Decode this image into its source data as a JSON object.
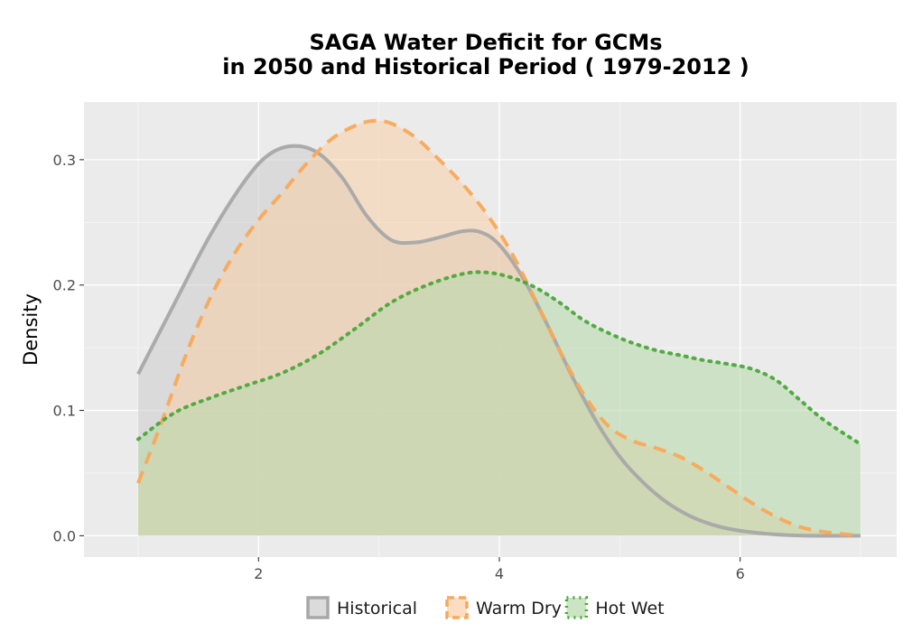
{
  "chart_data": {
    "type": "area",
    "title": "SAGA  Water Deficit for GCMs",
    "subtitle": "in 2050 and Historical Period ( 1979-2012 )",
    "xlabel": "",
    "ylabel": "Density",
    "xlim": [
      0.55,
      7.3
    ],
    "ylim": [
      -0.017,
      0.346
    ],
    "x_ticks": [
      2,
      4,
      6
    ],
    "y_ticks": [
      0.0,
      0.1,
      0.2,
      0.3
    ],
    "y_tick_labels": [
      "0.0",
      "0.1",
      "0.2",
      "0.3"
    ],
    "grid": true,
    "panel_background": "#ebebeb",
    "legend_position": "bottom",
    "series": [
      {
        "name": "Historical",
        "line_color": "#a8a8a8",
        "fill_color": "#cccccc",
        "linetype": "solid",
        "x": [
          1.0,
          1.3,
          1.6,
          1.9,
          2.1,
          2.3,
          2.5,
          2.7,
          2.9,
          3.1,
          3.3,
          3.5,
          3.7,
          3.85,
          4.0,
          4.2,
          4.4,
          4.6,
          4.8,
          5.0,
          5.2,
          5.4,
          5.6,
          5.8,
          6.0,
          6.3,
          6.6,
          7.0
        ],
        "y": [
          0.129,
          0.185,
          0.24,
          0.285,
          0.305,
          0.311,
          0.305,
          0.285,
          0.255,
          0.236,
          0.234,
          0.238,
          0.243,
          0.242,
          0.232,
          0.205,
          0.168,
          0.128,
          0.092,
          0.063,
          0.042,
          0.026,
          0.015,
          0.008,
          0.004,
          0.001,
          0.0,
          0.0
        ]
      },
      {
        "name": "Warm Dry",
        "line_color": "#f8a95a",
        "fill_color": "#f9cfa8",
        "linetype": "dashed",
        "x": [
          1.0,
          1.2,
          1.4,
          1.6,
          1.8,
          2.0,
          2.2,
          2.4,
          2.6,
          2.8,
          2.95,
          3.1,
          3.3,
          3.5,
          3.7,
          3.9,
          4.1,
          4.3,
          4.5,
          4.7,
          4.9,
          5.1,
          5.3,
          5.5,
          5.7,
          5.9,
          6.1,
          6.3,
          6.5,
          6.7,
          7.0
        ],
        "y": [
          0.042,
          0.092,
          0.145,
          0.19,
          0.225,
          0.252,
          0.274,
          0.297,
          0.316,
          0.327,
          0.331,
          0.329,
          0.318,
          0.3,
          0.28,
          0.256,
          0.226,
          0.188,
          0.148,
          0.113,
          0.088,
          0.076,
          0.07,
          0.063,
          0.052,
          0.039,
          0.026,
          0.015,
          0.007,
          0.003,
          0.0
        ]
      },
      {
        "name": "Hot Wet",
        "line_color": "#4aa83a",
        "fill_color": "#b5d9a9",
        "linetype": "dotted",
        "x": [
          1.0,
          1.3,
          1.6,
          1.9,
          2.2,
          2.5,
          2.8,
          3.1,
          3.4,
          3.7,
          3.9,
          4.1,
          4.3,
          4.5,
          4.7,
          4.9,
          5.1,
          5.3,
          5.5,
          5.7,
          5.9,
          6.1,
          6.3,
          6.5,
          6.7,
          7.0
        ],
        "y": [
          0.077,
          0.098,
          0.11,
          0.12,
          0.13,
          0.145,
          0.165,
          0.186,
          0.2,
          0.209,
          0.21,
          0.206,
          0.198,
          0.186,
          0.172,
          0.162,
          0.154,
          0.148,
          0.144,
          0.14,
          0.137,
          0.133,
          0.124,
          0.108,
          0.092,
          0.073
        ]
      }
    ]
  }
}
